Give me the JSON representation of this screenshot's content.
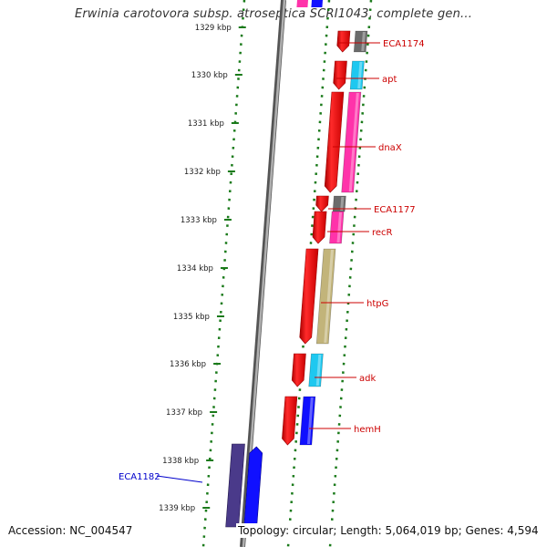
{
  "title": "Erwinia carotovora subsp. atroseptica SCRI1043, complete gen...",
  "footer": {
    "accession": "Accession: NC_004547",
    "summary": "Topology: circular; Length: 5,064,019 bp; Genes: 4,594"
  },
  "ticks": [
    {
      "label": "1329 kbp"
    },
    {
      "label": "1330 kbp"
    },
    {
      "label": "1331 kbp"
    },
    {
      "label": "1332 kbp"
    },
    {
      "label": "1333 kbp"
    },
    {
      "label": "1334 kbp"
    },
    {
      "label": "1335 kbp"
    },
    {
      "label": "1336 kbp"
    },
    {
      "label": "1337 kbp"
    },
    {
      "label": "1338 kbp"
    },
    {
      "label": "1339 kbp"
    }
  ],
  "genes": [
    {
      "label": "ECA1174",
      "cds_color": "#6b6b6b",
      "label_color": "#cc0000"
    },
    {
      "label": "apt",
      "cds_color": "#1ec8f0",
      "label_color": "#cc0000"
    },
    {
      "label": "dnaX",
      "cds_color": "#ff33aa",
      "label_color": "#cc0000"
    },
    {
      "label": "ECA1177",
      "cds_color": "#6b6b6b",
      "label_color": "#cc0000"
    },
    {
      "label": "recR",
      "cds_color": "#ff33aa",
      "label_color": "#cc0000"
    },
    {
      "label": "htpG",
      "cds_color": "#c2b47a",
      "label_color": "#cc0000"
    },
    {
      "label": "adk",
      "cds_color": "#1ec8f0",
      "label_color": "#cc0000"
    },
    {
      "label": "hemH",
      "cds_color": "#1010ff",
      "label_color": "#cc0000"
    },
    {
      "label": "ECA1182",
      "cds_color": "#1010ff",
      "label_color": "#0000cc",
      "cog_color": "#4a3a8a"
    }
  ],
  "colors": {
    "gene_arrow": "#ff0000",
    "backbone": "#8a8a8a",
    "dotted_track": "#1a7a1a",
    "tick_mark": "#1a7a1a"
  }
}
